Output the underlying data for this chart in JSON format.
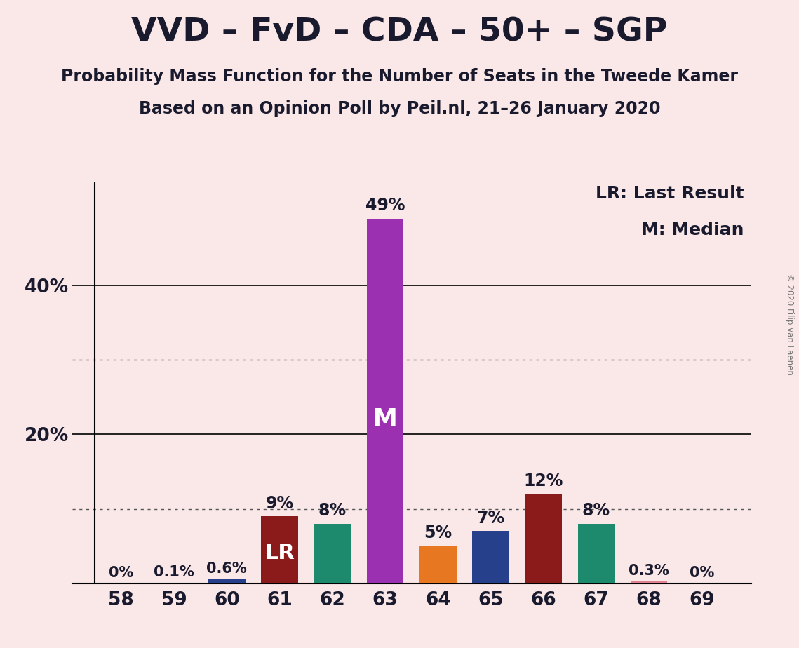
{
  "title": "VVD – FvD – CDA – 50+ – SGP",
  "subtitle1": "Probability Mass Function for the Number of Seats in the Tweede Kamer",
  "subtitle2": "Based on an Opinion Poll by Peil.nl, 21–26 January 2020",
  "copyright": "© 2020 Filip van Laenen",
  "categories": [
    58,
    59,
    60,
    61,
    62,
    63,
    64,
    65,
    66,
    67,
    68,
    69
  ],
  "values": [
    0.0,
    0.1,
    0.6,
    9.0,
    8.0,
    49.0,
    5.0,
    7.0,
    12.0,
    8.0,
    0.3,
    0.0
  ],
  "labels": [
    "0%",
    "0.1%",
    "0.6%",
    "9%",
    "8%",
    "49%",
    "5%",
    "7%",
    "12%",
    "8%",
    "0.3%",
    "0%"
  ],
  "colors": [
    "#C0A0C0",
    "#C0A0C0",
    "#27408B",
    "#8B1A1A",
    "#1D8A6E",
    "#9B30B0",
    "#E87722",
    "#27408B",
    "#8B1A1A",
    "#1D8A6E",
    "#E08090",
    "#C0A0C0"
  ],
  "background_color": "#FAE8E8",
  "median_bar": 63,
  "lr_bar": 61,
  "legend_lr": "LR: Last Result",
  "legend_m": "M: Median",
  "yticks": [
    20,
    40
  ],
  "ylim": [
    0,
    54
  ],
  "title_fontsize": 34,
  "subtitle_fontsize": 17,
  "tick_fontsize": 19,
  "annotation_fontsize": 17,
  "dotted_lines": [
    10,
    30
  ],
  "solid_lines": [
    20,
    40
  ]
}
